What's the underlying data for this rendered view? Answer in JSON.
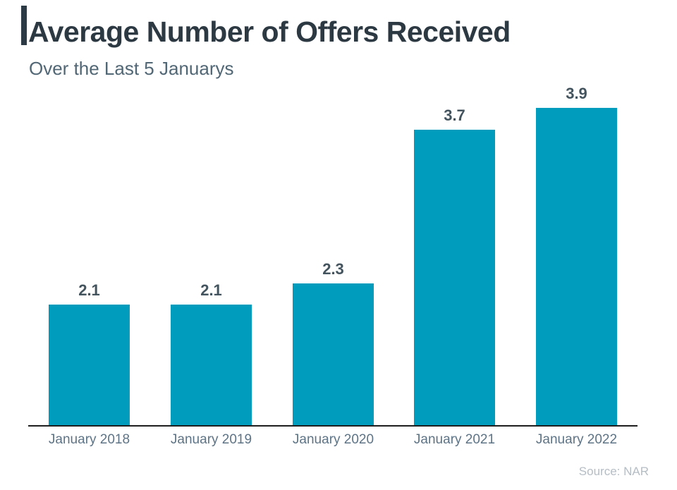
{
  "header": {
    "title": "Average Number of Offers Received",
    "subtitle": "Over the Last 5 Januarys"
  },
  "source_label": "Source: NAR",
  "colors": {
    "bar_fill": "#009CBD",
    "title_text": "#2D3942",
    "subtitle_text": "#516775",
    "value_label_text": "#44545E",
    "category_label_text": "#5E7486",
    "axis_line": "#1E1E1E",
    "accent_bar": "#2C3A46",
    "source_text": "#B5BDC4",
    "background": "#FFFFFF"
  },
  "chart_data": {
    "type": "bar",
    "title": "Average Number of Offers Received",
    "subtitle": "Over the Last 5 Januarys",
    "categories": [
      "January 2018",
      "January 2019",
      "January 2020",
      "January 2021",
      "January 2022"
    ],
    "values": [
      2.1,
      2.1,
      2.3,
      3.7,
      3.9
    ],
    "value_labels": [
      "2.1",
      "2.1",
      "2.3",
      "3.7",
      "3.9"
    ],
    "xlabel": "",
    "ylabel": "",
    "ylim": [
      1,
      4
    ],
    "grid": false,
    "legend": false,
    "data_labels_position": "above-bars",
    "source": "Source: NAR"
  }
}
